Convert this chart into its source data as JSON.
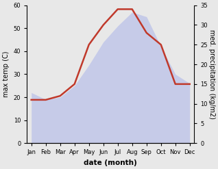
{
  "months": [
    "Jan",
    "Feb",
    "Mar",
    "Apr",
    "May",
    "Jun",
    "Jul",
    "Aug",
    "Sep",
    "Oct",
    "Nov",
    "Dec"
  ],
  "max_temp": [
    22,
    19,
    20,
    25,
    34,
    44,
    51,
    57,
    55,
    42,
    30,
    26
  ],
  "precipitation": [
    11,
    11,
    12,
    15,
    25,
    30,
    34,
    34,
    28,
    25,
    15,
    15
  ],
  "temp_fill_color": "#b0b8e8",
  "temp_fill_alpha": 0.6,
  "precip_color": "#c0392b",
  "precip_linewidth": 1.8,
  "xlabel": "date (month)",
  "ylabel_left": "max temp (C)",
  "ylabel_right": "med. precipitation (kg/m2)",
  "ylim_left": [
    0,
    60
  ],
  "ylim_right": [
    0,
    35
  ],
  "yticks_left": [
    0,
    10,
    20,
    30,
    40,
    50,
    60
  ],
  "yticks_right": [
    0,
    5,
    10,
    15,
    20,
    25,
    30,
    35
  ],
  "fig_facecolor": "#e8e8e8",
  "axes_facecolor": "#e8e8e8",
  "tick_fontsize": 6,
  "label_fontsize": 7,
  "xlabel_fontsize": 7.5,
  "xlabel_fontweight": "bold"
}
